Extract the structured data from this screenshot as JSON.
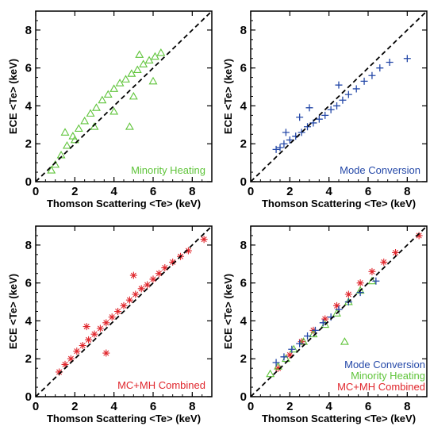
{
  "chart_data": [
    {
      "type": "scatter",
      "panel": "top-left",
      "xlabel": "Thomson Scattering  <Te> (keV)",
      "ylabel": "ECE  <Te> (keV)",
      "xlim": [
        0,
        9
      ],
      "ylim": [
        0,
        9
      ],
      "xticks": [
        "0",
        "2",
        "4",
        "6",
        "8"
      ],
      "yticks": [
        "0",
        "2",
        "4",
        "6",
        "8"
      ],
      "reference_line": "y = x (black dashed)",
      "annotations": [
        {
          "text": "Minority Heating",
          "color": "#5fc43a",
          "position": "bottom-right"
        }
      ],
      "series": [
        {
          "marker": "triangle",
          "color": "#5fc43a",
          "x": [
            0.8,
            1.0,
            1.3,
            1.6,
            1.9,
            2.2,
            2.5,
            2.8,
            3.1,
            3.4,
            3.7,
            4.0,
            4.3,
            4.6,
            4.9,
            5.2,
            5.5,
            5.8,
            6.1,
            6.4,
            2.0,
            3.0,
            4.0,
            5.0,
            6.0,
            4.8,
            1.5,
            5.3
          ],
          "y": [
            0.6,
            0.9,
            1.4,
            1.9,
            2.4,
            2.8,
            3.2,
            3.6,
            3.9,
            4.3,
            4.6,
            4.9,
            5.2,
            5.4,
            5.7,
            5.9,
            6.2,
            6.4,
            6.6,
            6.8,
            2.2,
            2.9,
            3.7,
            4.5,
            5.3,
            2.9,
            2.6,
            6.7
          ]
        }
      ]
    },
    {
      "type": "scatter",
      "panel": "top-right",
      "xlabel": "Thomson Scattering  <Te> (keV)",
      "ylabel": "ECE  <Te> (keV)",
      "xlim": [
        0,
        9
      ],
      "ylim": [
        0,
        9
      ],
      "xticks": [
        "0",
        "2",
        "4",
        "6",
        "8"
      ],
      "yticks": [
        "0",
        "2",
        "4",
        "6",
        "8"
      ],
      "reference_line": "y = x (black dashed)",
      "annotations": [
        {
          "text": "Mode Conversion",
          "color": "#2448a8",
          "position": "bottom-right"
        }
      ],
      "series": [
        {
          "marker": "plus",
          "color": "#2448a8",
          "x": [
            1.3,
            1.5,
            1.7,
            2.0,
            2.3,
            2.6,
            2.9,
            3.2,
            3.5,
            3.8,
            4.1,
            4.4,
            4.7,
            5.0,
            5.4,
            5.8,
            6.2,
            6.6,
            7.1,
            8.0,
            1.8,
            3.0,
            4.5,
            2.5
          ],
          "y": [
            1.7,
            1.8,
            2.0,
            2.2,
            2.4,
            2.6,
            2.9,
            3.1,
            3.3,
            3.5,
            3.8,
            4.0,
            4.3,
            4.6,
            4.9,
            5.3,
            5.6,
            6.0,
            6.3,
            6.5,
            2.6,
            3.9,
            5.1,
            3.4
          ]
        }
      ]
    },
    {
      "type": "scatter",
      "panel": "bottom-left",
      "xlabel": "Thomson Scattering  <Te> (keV)",
      "ylabel": "ECE  <Te> (keV)",
      "xlim": [
        0,
        9
      ],
      "ylim": [
        0,
        9
      ],
      "xticks": [
        "0",
        "2",
        "4",
        "6",
        "8"
      ],
      "yticks": [
        "0",
        "2",
        "4",
        "6",
        "8"
      ],
      "reference_line": "y = x (black dashed)",
      "annotations": [
        {
          "text": "MC+MH Combined",
          "color": "#e0262c",
          "position": "bottom-right"
        }
      ],
      "series": [
        {
          "marker": "asterisk",
          "color": "#e0262c",
          "x": [
            1.2,
            1.5,
            1.8,
            2.1,
            2.4,
            2.7,
            3.0,
            3.3,
            3.6,
            3.9,
            4.2,
            4.5,
            4.8,
            5.1,
            5.4,
            5.7,
            6.0,
            6.3,
            6.6,
            7.0,
            7.4,
            7.8,
            8.6,
            3.6,
            5.0,
            2.6
          ],
          "y": [
            1.3,
            1.7,
            2.0,
            2.4,
            2.7,
            3.0,
            3.3,
            3.6,
            3.9,
            4.2,
            4.5,
            4.8,
            5.1,
            5.4,
            5.7,
            5.9,
            6.2,
            6.5,
            6.8,
            7.1,
            7.4,
            7.7,
            8.3,
            2.3,
            6.4,
            3.7
          ]
        }
      ]
    },
    {
      "type": "scatter",
      "panel": "bottom-right",
      "xlabel": "Thomson Scattering  <Te> (keV)",
      "ylabel": "ECE  <Te> (keV)",
      "xlim": [
        0,
        9
      ],
      "ylim": [
        0,
        9
      ],
      "xticks": [
        "0",
        "2",
        "4",
        "6",
        "8"
      ],
      "yticks": [
        "0",
        "2",
        "4",
        "6",
        "8"
      ],
      "reference_line": "y = x (black dashed)",
      "legend_placement": "bottom-right",
      "legend": [
        {
          "text": "Mode Conversion",
          "color": "#2448a8"
        },
        {
          "text": "Minority Heating",
          "color": "#5fc43a"
        },
        {
          "text": "MC+MH Combined",
          "color": "#e0262c"
        }
      ],
      "series": [
        {
          "marker": "asterisk",
          "color": "#e0262c",
          "x": [
            1.4,
            2.0,
            2.6,
            3.2,
            3.8,
            4.4,
            5.0,
            5.6,
            6.2,
            6.8,
            7.4,
            8.6
          ],
          "y": [
            1.5,
            2.2,
            2.9,
            3.5,
            4.1,
            4.8,
            5.4,
            6.0,
            6.6,
            7.1,
            7.6,
            8.5
          ]
        },
        {
          "marker": "triangle",
          "color": "#5fc43a",
          "x": [
            1.0,
            1.4,
            1.8,
            2.2,
            2.7,
            3.2,
            3.8,
            4.4,
            5.0,
            5.6,
            6.2,
            4.8
          ],
          "y": [
            1.2,
            1.6,
            2.0,
            2.5,
            2.9,
            3.3,
            3.8,
            4.4,
            5.0,
            5.6,
            6.1,
            2.9
          ]
        },
        {
          "marker": "plus",
          "color": "#2448a8",
          "x": [
            1.3,
            1.7,
            2.1,
            2.5,
            2.9,
            3.3,
            3.7,
            4.1,
            4.5,
            5.0,
            5.6,
            6.4
          ],
          "y": [
            1.8,
            2.1,
            2.5,
            2.8,
            3.2,
            3.5,
            3.9,
            4.2,
            4.6,
            5.0,
            5.5,
            6.1
          ]
        }
      ]
    }
  ]
}
